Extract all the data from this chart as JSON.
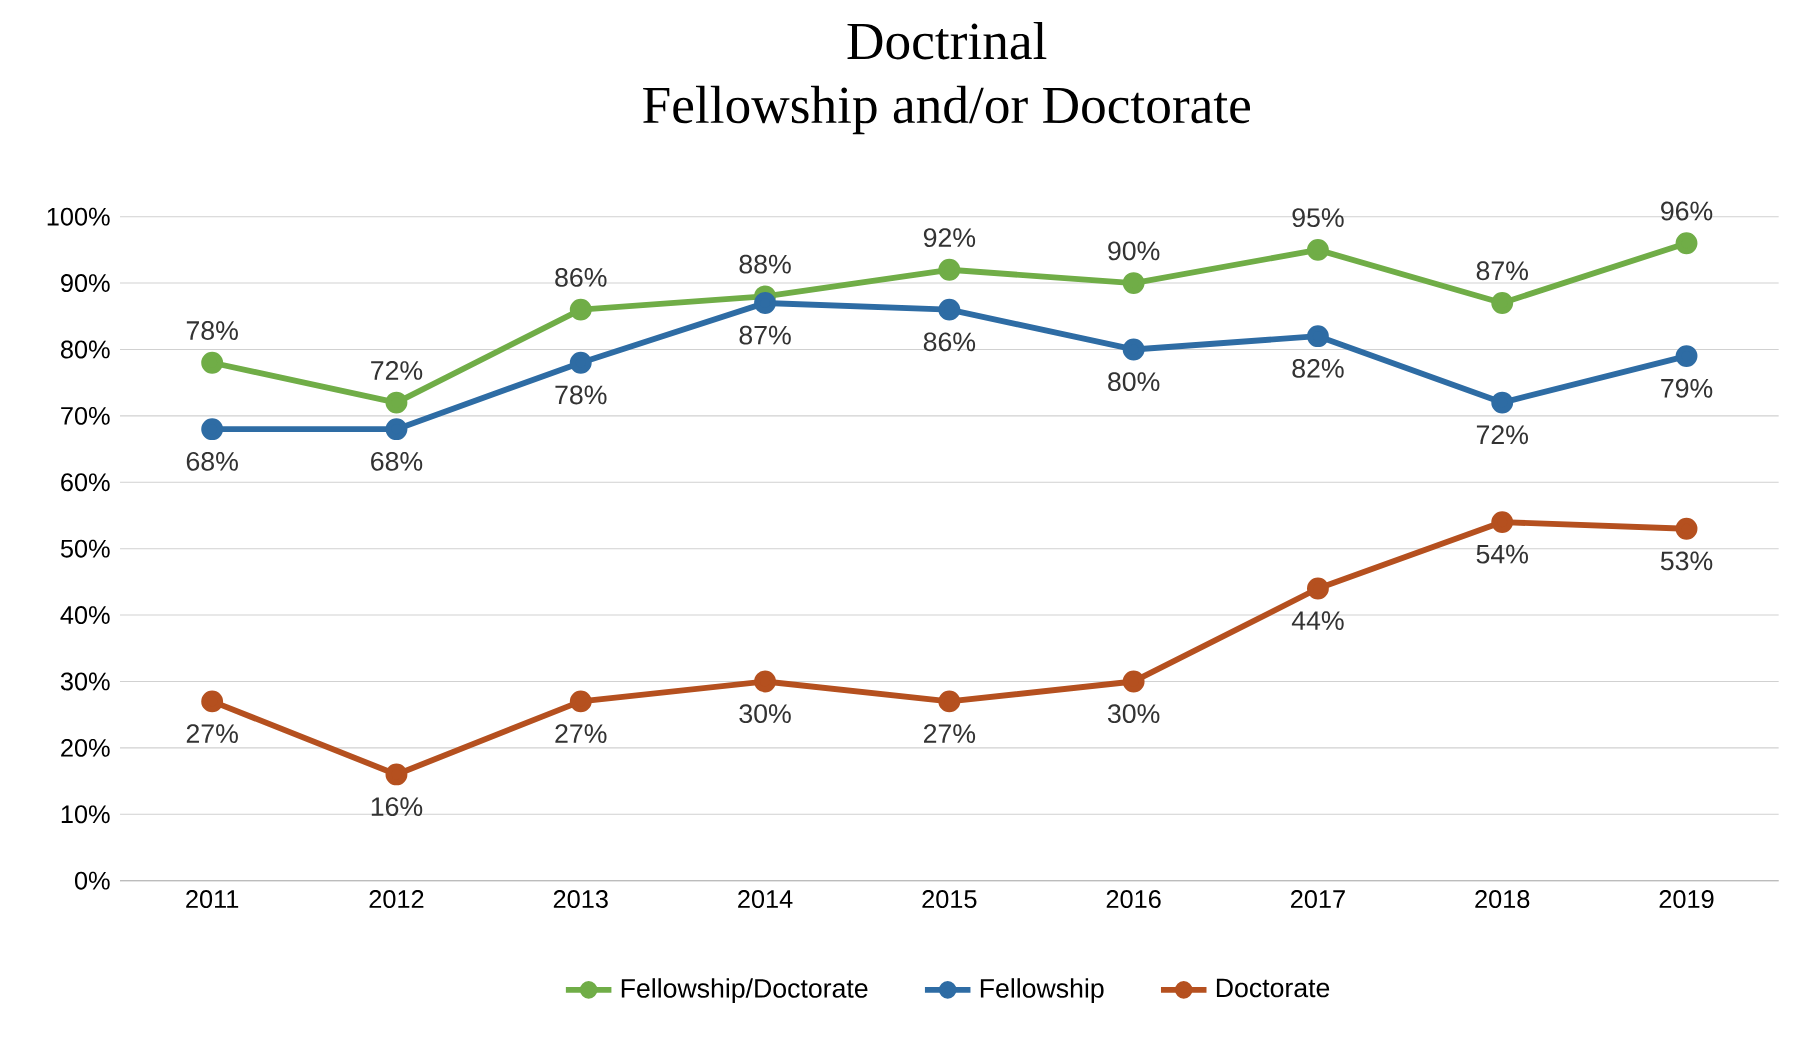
{
  "chart_data": {
    "type": "line",
    "title": "Doctrinal",
    "subtitle": "Fellowship and/or Doctorate",
    "categories": [
      "2011",
      "2012",
      "2013",
      "2014",
      "2015",
      "2016",
      "2017",
      "2018",
      "2019"
    ],
    "series": [
      {
        "name": "Fellowship/Doctorate",
        "color": "#70ad47",
        "values": [
          78,
          72,
          86,
          88,
          92,
          90,
          95,
          87,
          96
        ],
        "value_labels": [
          "78%",
          "72%",
          "86%",
          "88%",
          "92%",
          "90%",
          "95%",
          "87%",
          "96%"
        ]
      },
      {
        "name": "Fellowship",
        "color": "#2e6ca4",
        "values": [
          68,
          68,
          78,
          87,
          86,
          80,
          82,
          72,
          79
        ],
        "value_labels": [
          "68%",
          "68%",
          "78%",
          "87%",
          "86%",
          "80%",
          "82%",
          "72%",
          "79%"
        ]
      },
      {
        "name": "Doctorate",
        "color": "#b5501f",
        "values": [
          27,
          16,
          27,
          30,
          27,
          30,
          44,
          54,
          53
        ],
        "value_labels": [
          "27%",
          "16%",
          "27%",
          "30%",
          "27%",
          "30%",
          "44%",
          "54%",
          "53%"
        ]
      }
    ],
    "ylim": [
      0,
      100
    ],
    "yticks": [
      {
        "value": 0,
        "label": "0%"
      },
      {
        "value": 10,
        "label": "10%"
      },
      {
        "value": 20,
        "label": "20%"
      },
      {
        "value": 30,
        "label": "30%"
      },
      {
        "value": 40,
        "label": "40%"
      },
      {
        "value": 50,
        "label": "50%"
      },
      {
        "value": 60,
        "label": "60%"
      },
      {
        "value": 70,
        "label": "70%"
      },
      {
        "value": 80,
        "label": "80%"
      },
      {
        "value": 90,
        "label": "90%"
      },
      {
        "value": 100,
        "label": "100%"
      }
    ],
    "grid": "y",
    "legend": "bottom",
    "marker": "circle",
    "line_style": "solid"
  }
}
